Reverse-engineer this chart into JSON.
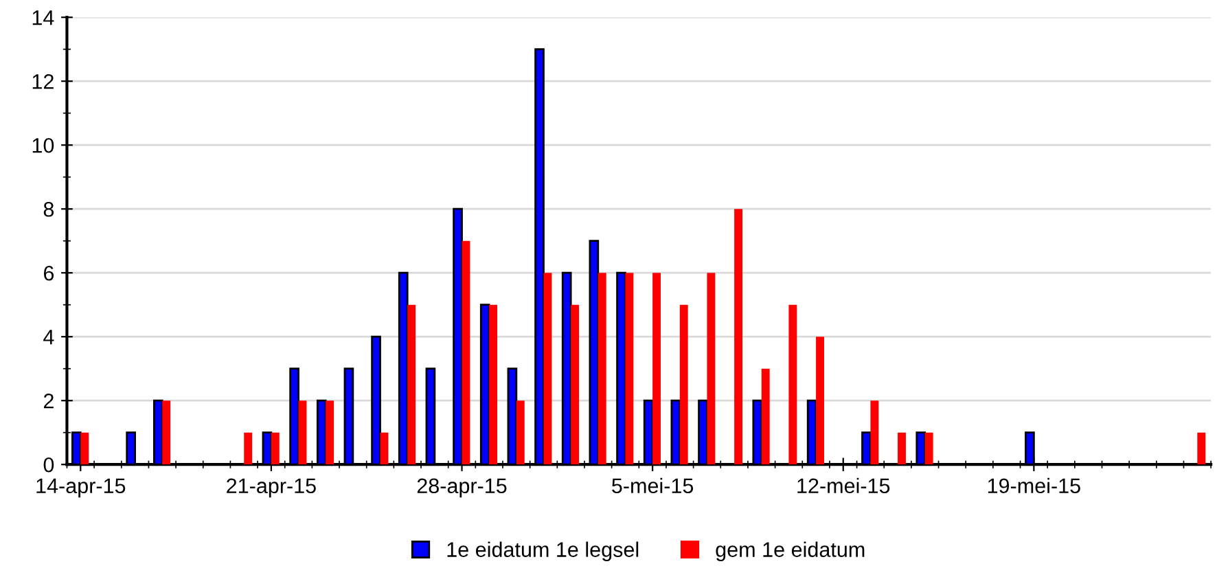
{
  "chart_data": {
    "type": "bar",
    "categories": [
      "14-apr-15",
      null,
      null,
      null,
      null,
      null,
      null,
      "21-apr-15",
      null,
      null,
      null,
      null,
      null,
      null,
      "28-apr-15",
      null,
      null,
      null,
      null,
      null,
      null,
      "5-mei-15",
      null,
      null,
      null,
      null,
      null,
      null,
      "12-mei-15",
      null,
      null,
      null,
      null,
      null,
      null,
      "19-mei-15",
      null,
      null,
      null,
      null,
      null,
      null
    ],
    "series": [
      {
        "name": "1e eidatum 1e legsel",
        "color": "#0000ff",
        "values": [
          1,
          0,
          1,
          2,
          0,
          0,
          0,
          1,
          3,
          2,
          3,
          4,
          6,
          3,
          8,
          5,
          3,
          13,
          6,
          7,
          6,
          2,
          2,
          2,
          0,
          2,
          0,
          2,
          0,
          1,
          0,
          1,
          0,
          0,
          0,
          1,
          0,
          0,
          0,
          0,
          0,
          0
        ]
      },
      {
        "name": "gem 1e eidatum",
        "color": "#ff0000",
        "values": [
          1,
          0,
          0,
          2,
          0,
          0,
          1,
          1,
          2,
          2,
          0,
          1,
          5,
          0,
          7,
          5,
          2,
          6,
          5,
          6,
          6,
          6,
          5,
          6,
          8,
          3,
          5,
          4,
          0,
          2,
          1,
          1,
          0,
          0,
          0,
          0,
          0,
          0,
          0,
          0,
          0,
          1
        ]
      }
    ],
    "ylim": [
      0,
      14
    ],
    "yticks": [
      0,
      2,
      4,
      6,
      8,
      10,
      12,
      14
    ],
    "grid": "y",
    "legend": "bottom"
  }
}
